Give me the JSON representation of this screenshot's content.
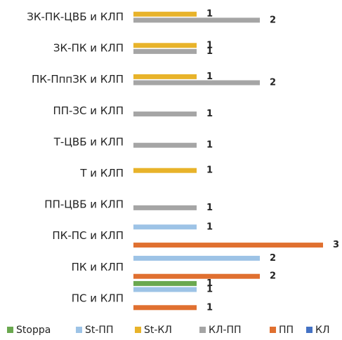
{
  "chart_data": {
    "type": "bar",
    "orientation": "horizontal",
    "categories": [
      "ЗК-ПК-ЦВБ и КЛП",
      "ЗК-ПК и КЛП",
      "ПК-ПппЗК и КЛП",
      "ПП-ЗС и КЛП",
      "Т-ЦВБ и КЛП",
      "Т и КЛП",
      "ПП-ЦВБ и КЛП",
      "ПК-ПС и КЛП",
      "ПК и КЛП",
      "ПС и КЛП"
    ],
    "series": [
      {
        "name": "Stoppa",
        "color": "#6aa84f",
        "values": [
          null,
          null,
          null,
          null,
          null,
          null,
          null,
          null,
          null,
          1
        ]
      },
      {
        "name": "St-ПП",
        "color": "#9dc3e6",
        "values": [
          null,
          null,
          null,
          null,
          null,
          null,
          null,
          1,
          2,
          1
        ]
      },
      {
        "name": "St-КЛ",
        "color": "#e8b32a",
        "values": [
          1,
          1,
          1,
          null,
          null,
          1,
          null,
          null,
          null,
          null
        ]
      },
      {
        "name": "КЛ-ПП",
        "color": "#a5a5a5",
        "values": [
          2,
          1,
          2,
          1,
          1,
          null,
          1,
          null,
          null,
          null
        ]
      },
      {
        "name": "ПП",
        "color": "#e07030",
        "values": [
          null,
          null,
          null,
          null,
          null,
          null,
          null,
          3,
          2,
          1
        ]
      },
      {
        "name": "КЛ",
        "color": "#4472c4",
        "values": [
          null,
          null,
          null,
          null,
          null,
          null,
          null,
          null,
          null,
          null
        ]
      }
    ],
    "xlim": [
      0,
      3
    ],
    "legend": "bottom"
  }
}
